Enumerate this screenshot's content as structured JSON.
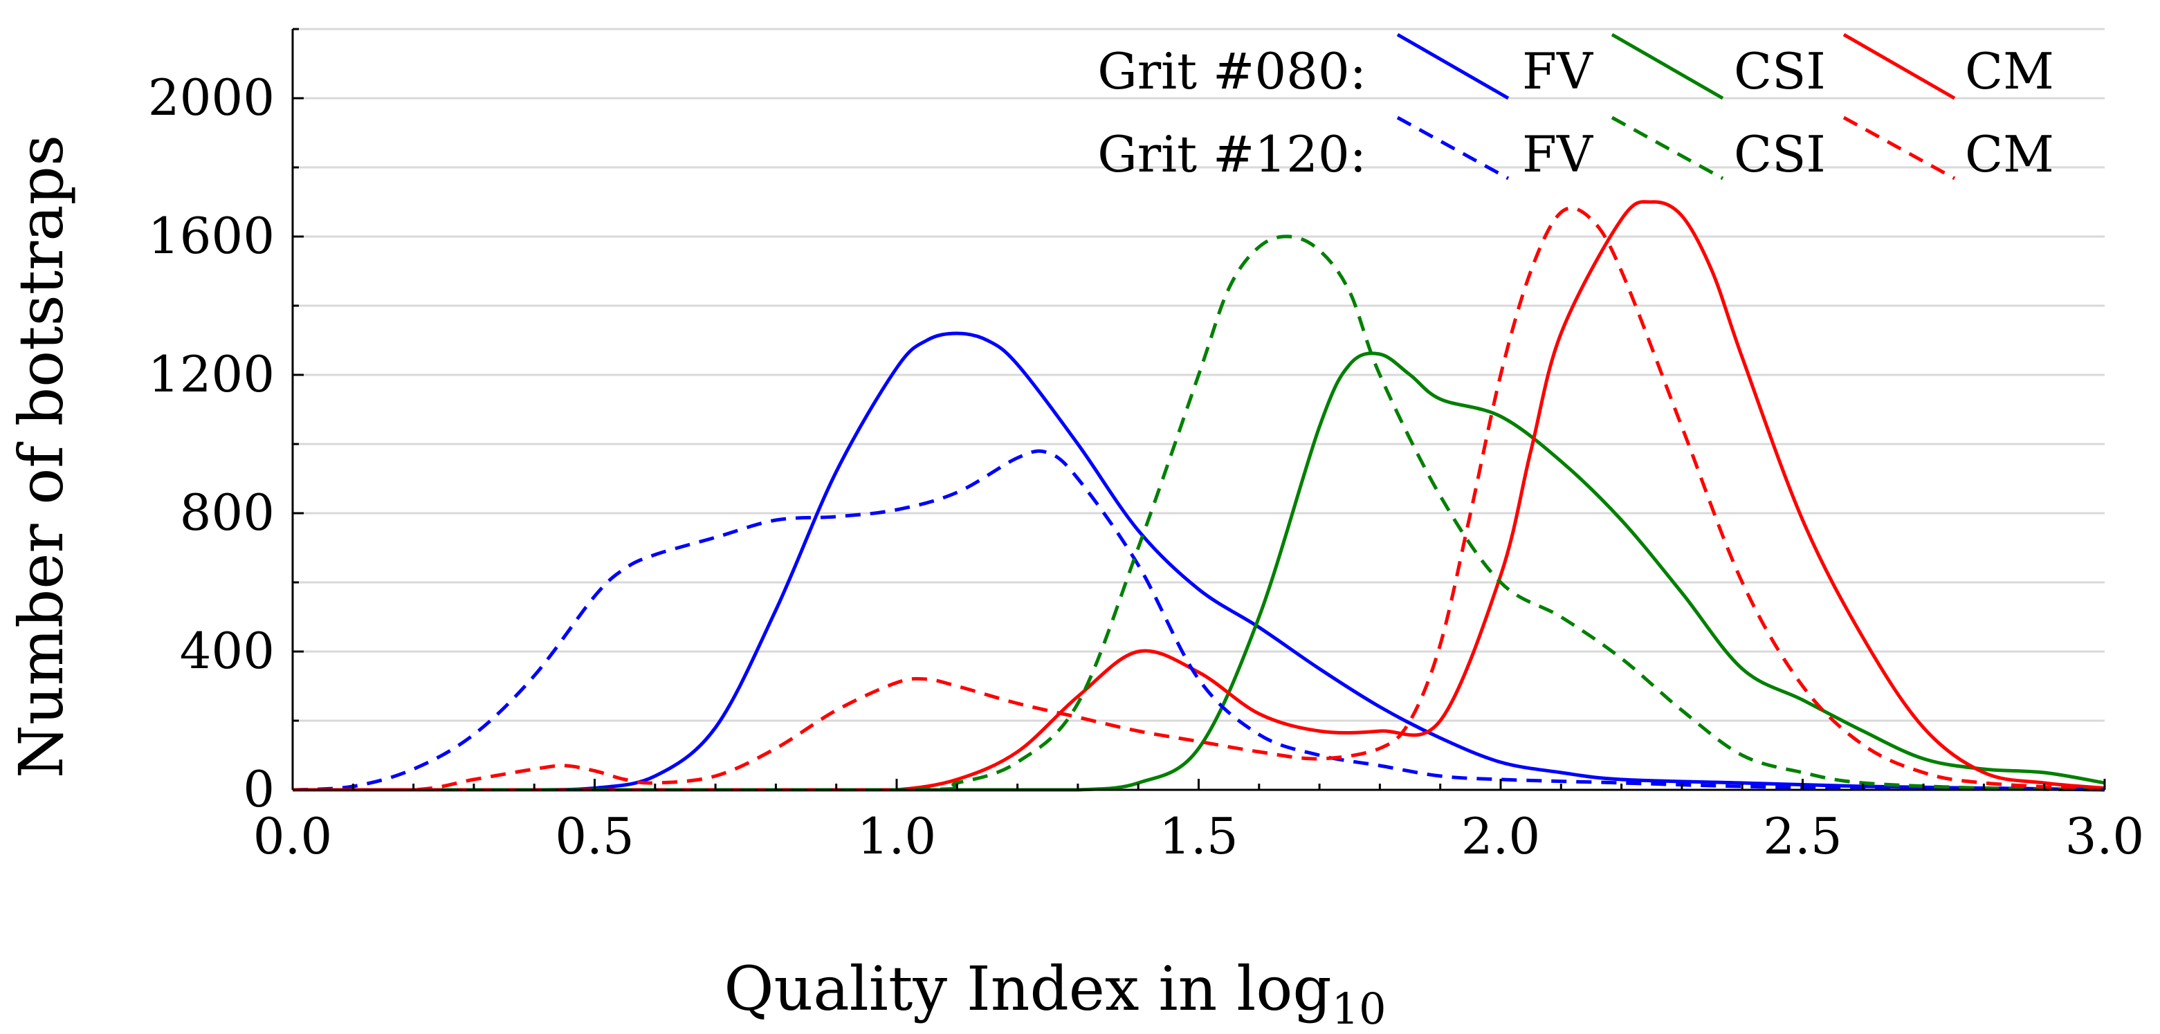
{
  "chart_data": {
    "type": "line",
    "title": "",
    "xlabel": "Quality Index in log",
    "xlabel_subscript": "10",
    "ylabel": "Number of botstraps",
    "xlim": [
      0.0,
      3.0
    ],
    "ylim": [
      0,
      2200
    ],
    "x_ticks": [
      0.0,
      0.5,
      1.0,
      1.5,
      2.0,
      2.5,
      3.0
    ],
    "x_tick_labels": [
      "0.0",
      "0.5",
      "1.0",
      "1.5",
      "2.0",
      "2.5",
      "3.0"
    ],
    "y_ticks": [
      0,
      400,
      800,
      1200,
      1600,
      2000
    ],
    "y_tick_labels": [
      "0",
      "400",
      "800",
      "1200",
      "1600",
      "2000"
    ],
    "grid": true,
    "legend": {
      "placement": "top-right",
      "rows": [
        {
          "label": "Grit #080:",
          "entries": [
            "FV",
            "CSI",
            "CM"
          ],
          "style": "solid"
        },
        {
          "label": "Grit #120:",
          "entries": [
            "FV",
            "CSI",
            "CM"
          ],
          "style": "dashed"
        }
      ]
    },
    "colors": {
      "FV": "#0000ff",
      "CSI": "#008000",
      "CM": "#ff0000"
    },
    "series": [
      {
        "name": "FV",
        "grit": "Grit #080",
        "style": "solid",
        "color": "#0000ff",
        "x": [
          0.0,
          0.2,
          0.4,
          0.5,
          0.6,
          0.7,
          0.8,
          0.9,
          1.0,
          1.05,
          1.1,
          1.15,
          1.2,
          1.3,
          1.4,
          1.5,
          1.6,
          1.7,
          1.8,
          1.9,
          2.0,
          2.1,
          2.2,
          2.4,
          2.6,
          2.8,
          3.0
        ],
        "y": [
          0,
          0,
          0,
          5,
          40,
          180,
          520,
          920,
          1220,
          1300,
          1320,
          1300,
          1230,
          1000,
          750,
          580,
          470,
          350,
          240,
          150,
          80,
          50,
          30,
          20,
          10,
          5,
          0
        ]
      },
      {
        "name": "CSI",
        "grit": "Grit #080",
        "style": "solid",
        "color": "#008000",
        "x": [
          0.0,
          1.0,
          1.1,
          1.2,
          1.3,
          1.4,
          1.5,
          1.6,
          1.7,
          1.75,
          1.8,
          1.85,
          1.9,
          2.0,
          2.1,
          2.2,
          2.3,
          2.4,
          2.5,
          2.6,
          2.7,
          2.8,
          2.9,
          3.0
        ],
        "y": [
          0,
          0,
          0,
          0,
          0,
          20,
          120,
          500,
          1050,
          1230,
          1260,
          1200,
          1130,
          1080,
          950,
          780,
          570,
          350,
          260,
          170,
          90,
          60,
          50,
          20
        ]
      },
      {
        "name": "CM",
        "grit": "Grit #080",
        "style": "solid",
        "color": "#ff0000",
        "x": [
          0.0,
          0.9,
          1.0,
          1.1,
          1.2,
          1.3,
          1.4,
          1.5,
          1.6,
          1.7,
          1.8,
          1.9,
          2.0,
          2.05,
          2.1,
          2.2,
          2.25,
          2.3,
          2.35,
          2.4,
          2.5,
          2.6,
          2.7,
          2.8,
          2.9,
          3.0
        ],
        "y": [
          0,
          0,
          0,
          30,
          110,
          270,
          400,
          340,
          220,
          170,
          170,
          200,
          620,
          980,
          1320,
          1650,
          1700,
          1660,
          1500,
          1250,
          780,
          440,
          180,
          50,
          20,
          5
        ]
      },
      {
        "name": "FV",
        "grit": "Grit #120",
        "style": "dashed",
        "color": "#0000ff",
        "x": [
          0.0,
          0.1,
          0.2,
          0.3,
          0.4,
          0.5,
          0.55,
          0.6,
          0.7,
          0.8,
          0.9,
          1.0,
          1.1,
          1.2,
          1.25,
          1.3,
          1.4,
          1.5,
          1.6,
          1.7,
          1.8,
          1.9,
          2.0,
          2.2,
          2.4,
          2.6,
          2.8,
          3.0
        ],
        "y": [
          0,
          10,
          60,
          160,
          330,
          560,
          640,
          680,
          730,
          780,
          790,
          810,
          860,
          960,
          975,
          900,
          650,
          320,
          160,
          100,
          70,
          40,
          30,
          20,
          10,
          5,
          5,
          0
        ]
      },
      {
        "name": "CSI",
        "grit": "Grit #120",
        "style": "dashed",
        "color": "#008000",
        "x": [
          0.0,
          1.0,
          1.1,
          1.2,
          1.3,
          1.4,
          1.5,
          1.55,
          1.6,
          1.65,
          1.7,
          1.75,
          1.8,
          1.9,
          2.0,
          2.1,
          2.2,
          2.3,
          2.4,
          2.5,
          2.6,
          2.8,
          3.0
        ],
        "y": [
          0,
          0,
          20,
          80,
          250,
          700,
          1200,
          1450,
          1570,
          1600,
          1560,
          1440,
          1200,
          850,
          600,
          500,
          380,
          230,
          100,
          50,
          20,
          5,
          0
        ]
      },
      {
        "name": "CM",
        "grit": "Grit #120",
        "style": "dashed",
        "color": "#ff0000",
        "x": [
          0.0,
          0.2,
          0.3,
          0.4,
          0.45,
          0.5,
          0.55,
          0.6,
          0.7,
          0.8,
          0.9,
          1.0,
          1.05,
          1.1,
          1.2,
          1.3,
          1.4,
          1.5,
          1.6,
          1.7,
          1.8,
          1.85,
          1.9,
          1.95,
          2.0,
          2.05,
          2.1,
          2.15,
          2.2,
          2.3,
          2.4,
          2.5,
          2.6,
          2.7,
          2.8,
          3.0
        ],
        "y": [
          0,
          0,
          30,
          60,
          70,
          55,
          30,
          20,
          40,
          120,
          230,
          310,
          320,
          300,
          250,
          210,
          170,
          140,
          110,
          90,
          120,
          200,
          420,
          800,
          1200,
          1500,
          1670,
          1650,
          1500,
          1050,
          600,
          300,
          130,
          50,
          20,
          0
        ]
      }
    ]
  }
}
